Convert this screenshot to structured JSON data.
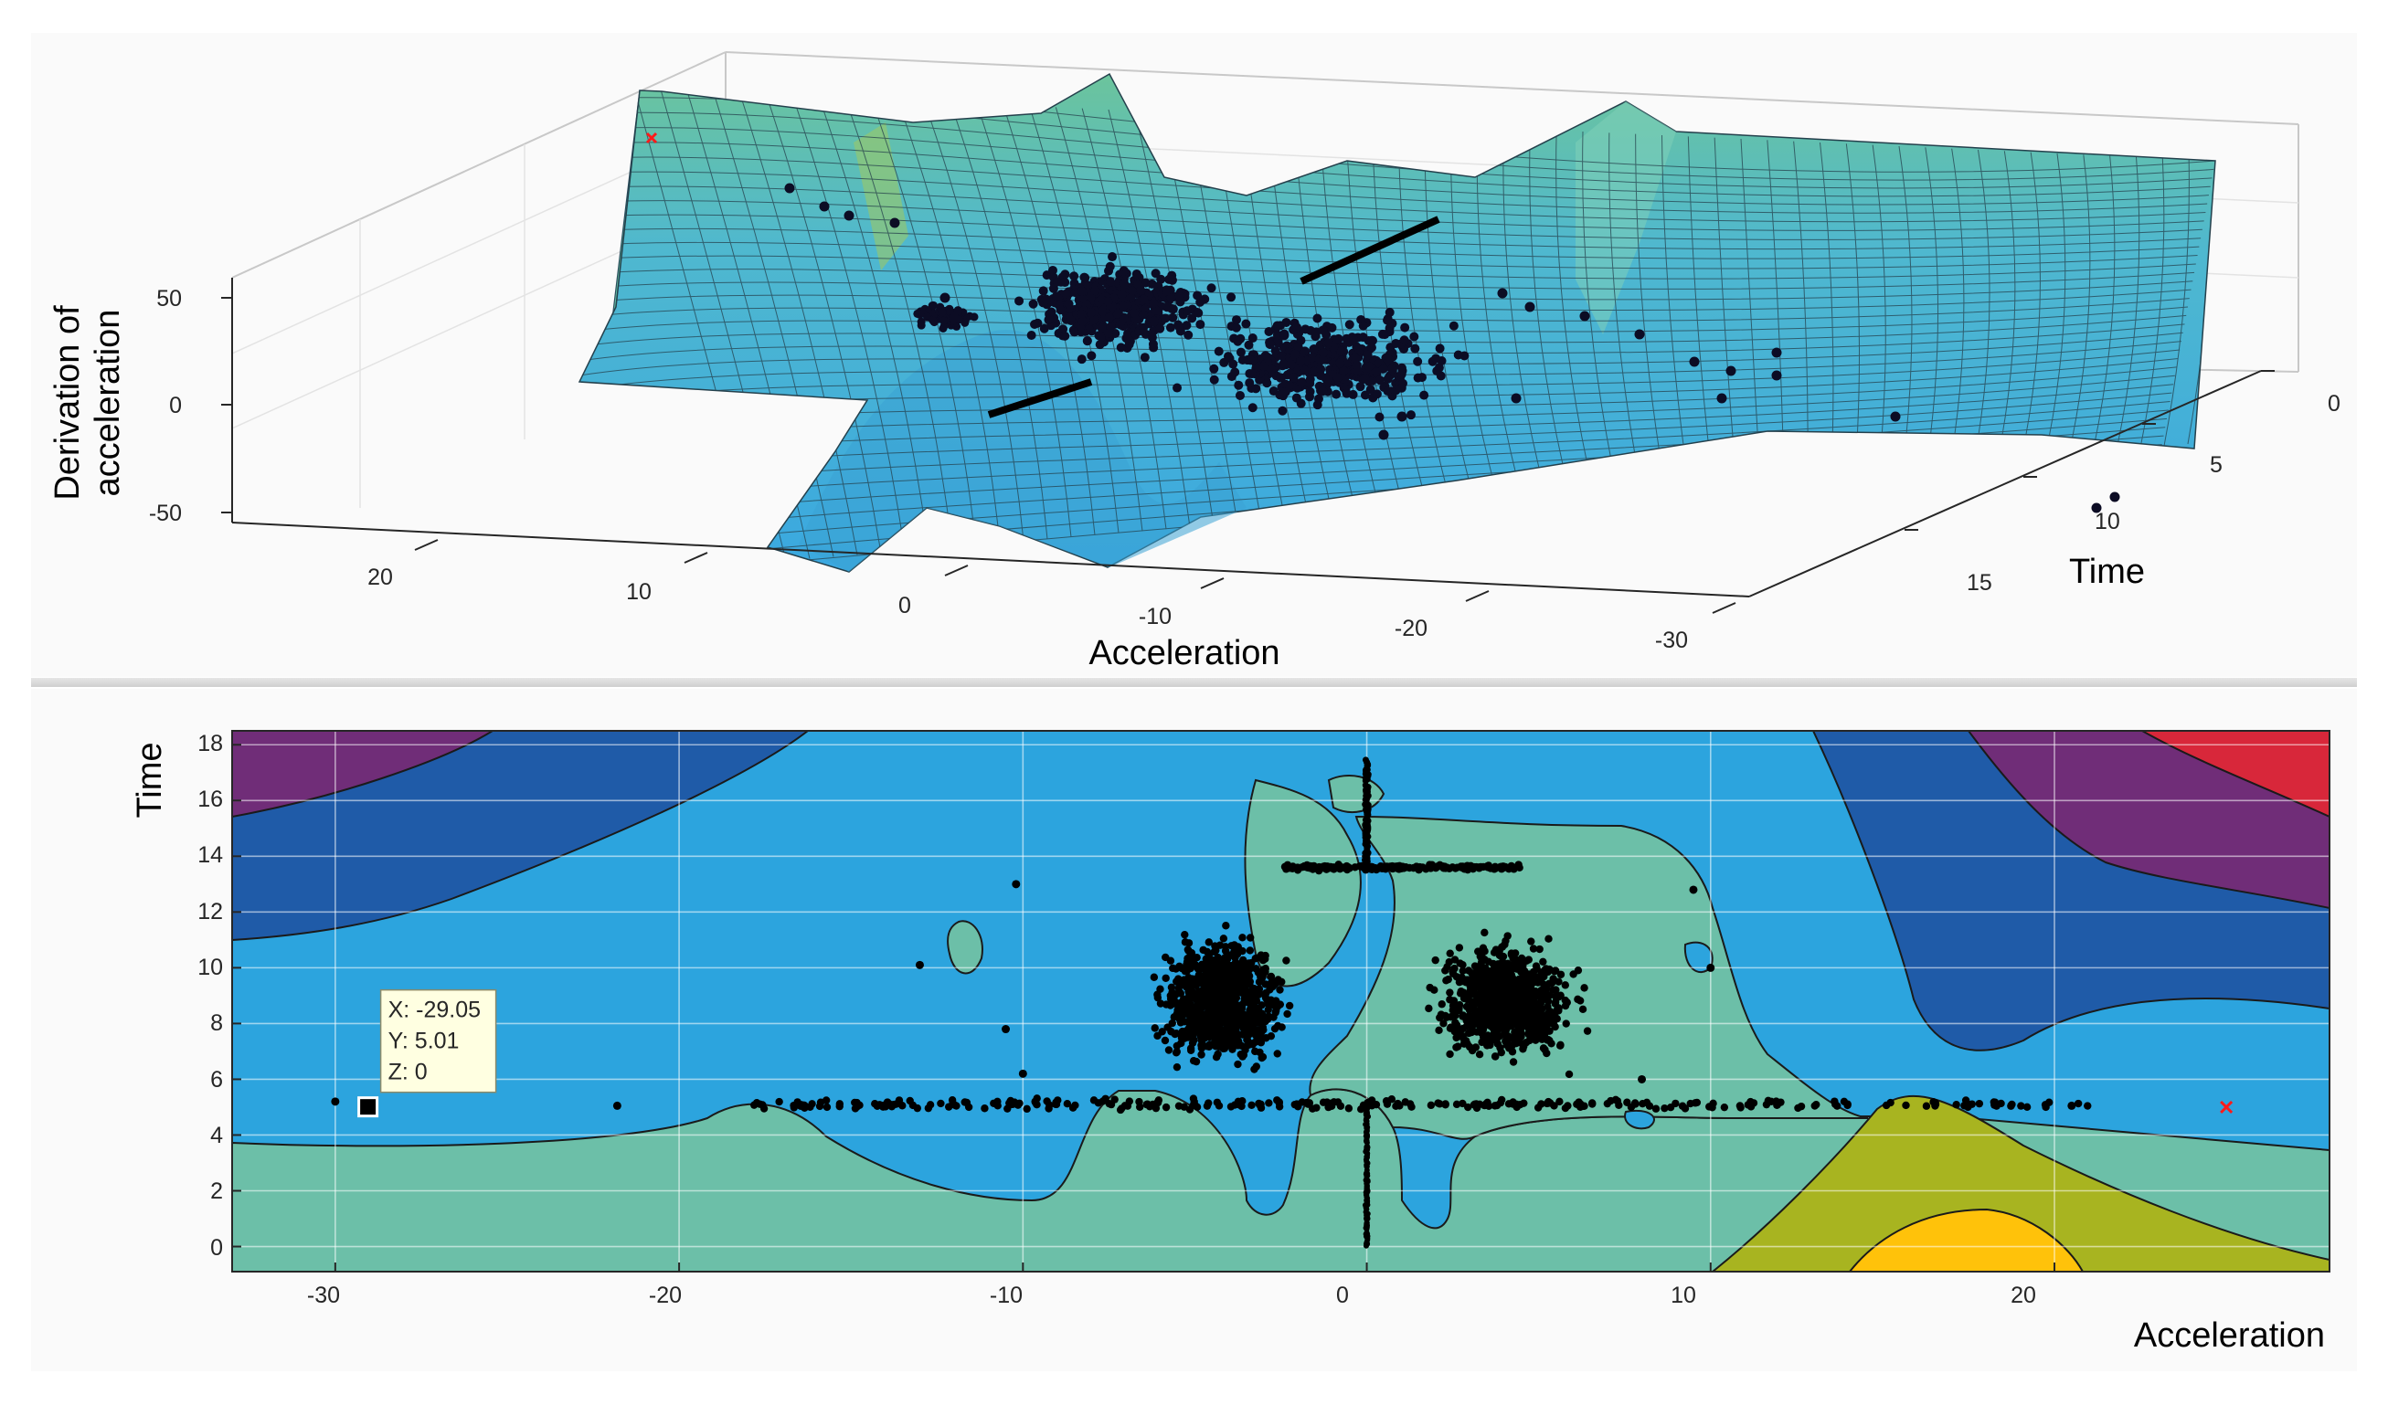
{
  "chart_data": [
    {
      "type": "surface",
      "xlabel": "Acceleration",
      "ylabel": "Time",
      "zlabel": [
        "Derivation of",
        "acceleration"
      ],
      "xlim": [
        -33,
        28
      ],
      "ylim": [
        0,
        18
      ],
      "zlim": [
        -50,
        70
      ],
      "x_ticks": [
        "20",
        "10",
        "0",
        "-10",
        "-20",
        "-30"
      ],
      "y_ticks": [
        "0",
        "5",
        "10",
        "15"
      ],
      "z_ticks": [
        "50",
        "0",
        "-50"
      ],
      "grid": true,
      "marker": {
        "type": "x",
        "color": "#ff0000"
      }
    },
    {
      "type": "contour",
      "xlabel": "Acceleration",
      "ylabel": "Time",
      "xlim": [
        -33,
        28
      ],
      "ylim": [
        -0.9,
        18.5
      ],
      "x_ticks": [
        "-30",
        "-20",
        "-10",
        "0",
        "10",
        "20"
      ],
      "y_ticks": [
        "0",
        "2",
        "4",
        "6",
        "8",
        "10",
        "12",
        "14",
        "16",
        "18"
      ],
      "grid": true,
      "levels_colors": [
        "#ffc20a",
        "#a8b420",
        "#6cbfa8",
        "#2ca4de",
        "#1f5ba8",
        "#702d78",
        "#d8273a"
      ],
      "scatter_color": "#000000",
      "marker": {
        "type": "x",
        "color": "#ff0000",
        "x": 25,
        "y": 5
      },
      "datatip": {
        "x_text": "X: -29.05",
        "y_text": "Y: 5.01",
        "z_text": "Z: 0",
        "x": -29.05,
        "y": 5.01
      }
    }
  ]
}
